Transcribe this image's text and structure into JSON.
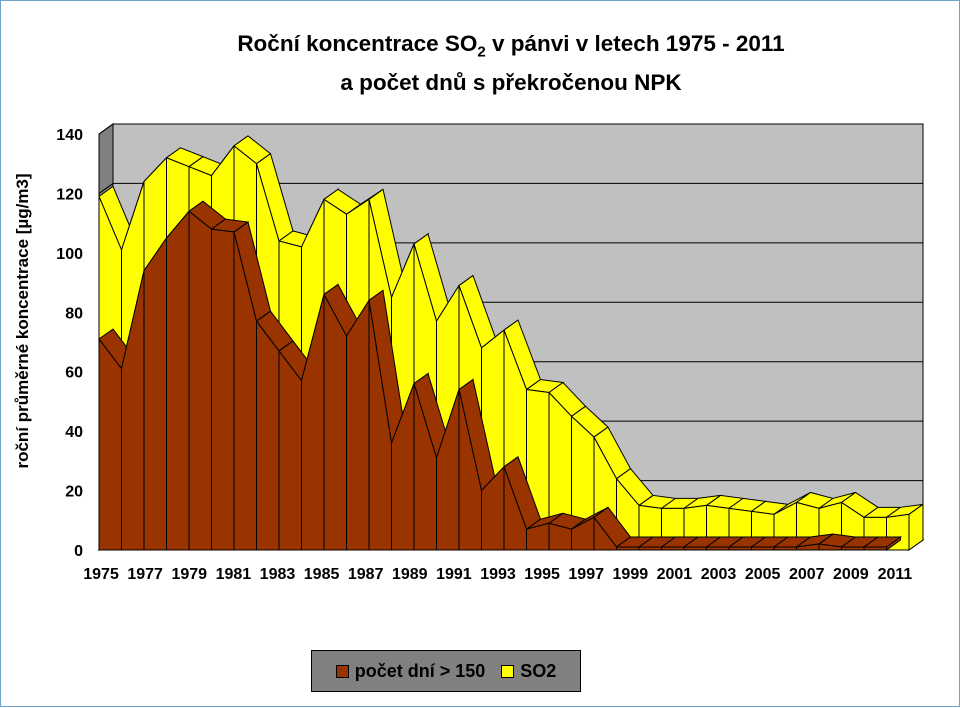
{
  "title": {
    "line1_pre": "Roční koncentrace SO",
    "line1_sub": "2",
    "line1_post": " v pánvi v letech 1975 - 2011",
    "line2": "a počet dnů s překročenou NPK"
  },
  "chart_data": {
    "type": "area",
    "title": "Roční koncentrace SO2 v pánvi v letech 1975 - 2011 a počet dnů s překročenou NPK",
    "ylabel": "roční průměrné koncentrace [µg/m3]",
    "xlabel": "",
    "ylim": [
      0,
      140
    ],
    "yticks": [
      "0",
      "20",
      "40",
      "60",
      "80",
      "100",
      "120",
      "140"
    ],
    "grid": true,
    "legend_position": "bottom",
    "x": [
      "1975",
      "1976",
      "1977",
      "1978",
      "1979",
      "1980",
      "1981",
      "1982",
      "1983",
      "1984",
      "1985",
      "1986",
      "1987",
      "1988",
      "1989",
      "1990",
      "1991",
      "1992",
      "1993",
      "1994",
      "1995",
      "1996",
      "1997",
      "1998",
      "1999",
      "2000",
      "2001",
      "2002",
      "2003",
      "2004",
      "2005",
      "2006",
      "2007",
      "2008",
      "2009",
      "2010",
      "2011"
    ],
    "xtick_labels": [
      "1975",
      "1977",
      "1979",
      "1981",
      "1983",
      "1985",
      "1987",
      "1989",
      "1991",
      "1993",
      "1995",
      "1997",
      "1999",
      "2001",
      "2003",
      "2005",
      "2007",
      "2009",
      "2011"
    ],
    "series": [
      {
        "name": "SO2",
        "color": "#ffff00",
        "values": [
          119,
          101,
          124,
          132,
          129,
          126,
          136,
          130,
          104,
          102,
          118,
          113,
          118,
          85,
          103,
          77,
          89,
          68,
          74,
          54,
          53,
          45,
          38,
          24,
          15,
          14,
          14,
          15,
          14,
          13,
          12,
          16,
          14,
          16,
          11,
          11,
          12
        ]
      },
      {
        "name": "počet dní > 150",
        "color": "#993300",
        "values": [
          71,
          61,
          94,
          105,
          114,
          108,
          107,
          77,
          67,
          57,
          86,
          72,
          84,
          36,
          56,
          31,
          54,
          20,
          28,
          7,
          9,
          7,
          11,
          1,
          1,
          1,
          1,
          1,
          1,
          1,
          1,
          1,
          2,
          1,
          1,
          1,
          null
        ]
      }
    ]
  },
  "colors": {
    "plot_bg": "#c0c0c0",
    "wall_side": "#808080",
    "floor": "#a6a6a6",
    "so2": "#ffff00",
    "days": "#993300"
  },
  "legend": {
    "items": [
      {
        "label": "počet dní > 150",
        "color": "#993300"
      },
      {
        "label": "SO2",
        "color": "#ffff00"
      }
    ]
  }
}
